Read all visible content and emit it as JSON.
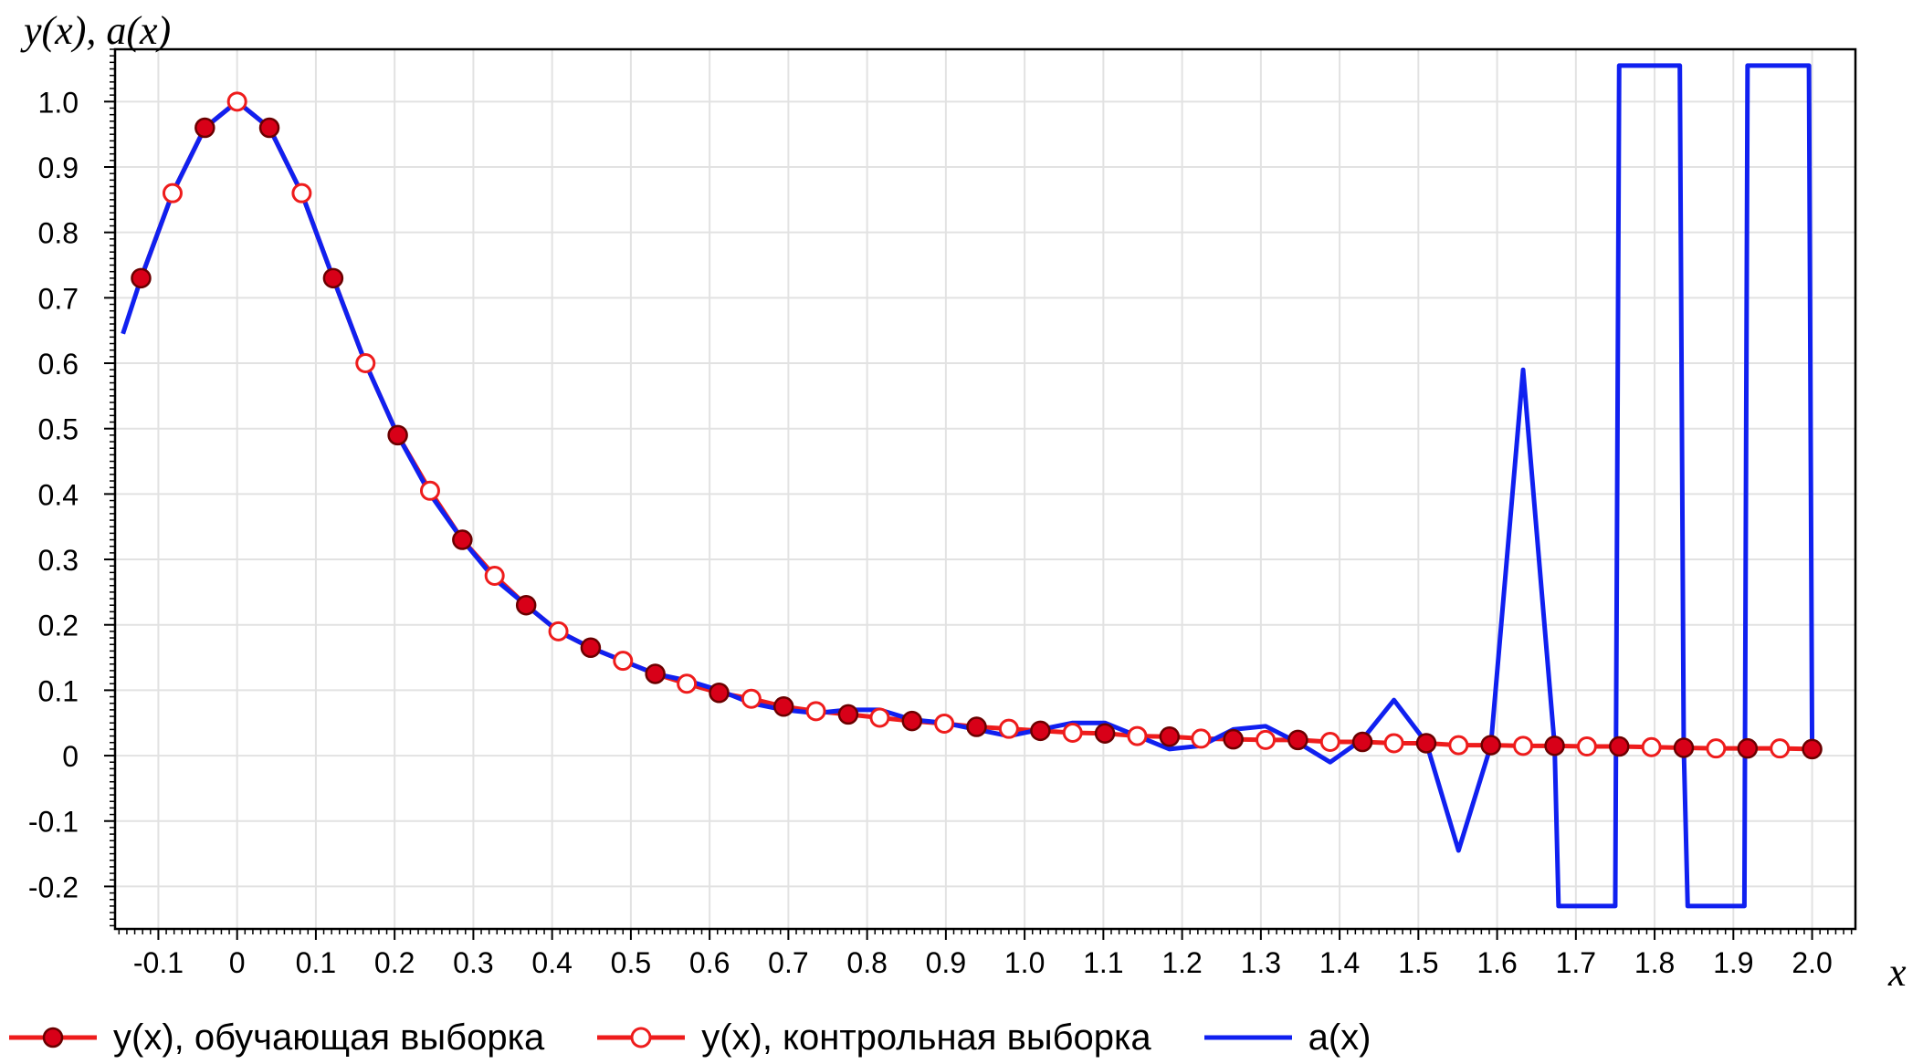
{
  "chart_data": {
    "type": "line",
    "ylabel": "y(x), a(x)",
    "xlabel": "x",
    "xlim": [
      -0.155,
      2.055
    ],
    "ylim": [
      -0.265,
      1.08
    ],
    "grid": true,
    "legend_position": "bottom",
    "x_ticks": [
      "-0.1",
      "0",
      "0.1",
      "0.2",
      "0.3",
      "0.4",
      "0.5",
      "0.6",
      "0.7",
      "0.8",
      "0.9",
      "1.0",
      "1.1",
      "1.2",
      "1.3",
      "1.4",
      "1.5",
      "1.6",
      "1.7",
      "1.8",
      "1.9",
      "2.0"
    ],
    "y_ticks": [
      "-0.2",
      "-0.1",
      "0",
      "0.1",
      "0.2",
      "0.3",
      "0.4",
      "0.5",
      "0.6",
      "0.7",
      "0.8",
      "0.9",
      "1.0"
    ],
    "colors": {
      "y": "#ee1c1c",
      "train_fill": "#d80018",
      "train_edge": "#6a0000",
      "control_fill": "#ffffff",
      "a": "#1020f0",
      "grid": "#e2e2e2"
    },
    "series": [
      {
        "name": "y(x), обучающая выборка",
        "x": [
          -0.122,
          -0.041,
          0.041,
          0.122,
          0.204,
          0.286,
          0.367,
          0.449,
          0.531,
          0.612,
          0.694,
          0.776,
          0.857,
          0.939,
          1.02,
          1.102,
          1.184,
          1.265,
          1.347,
          1.429,
          1.51,
          1.592,
          1.673,
          1.755,
          1.837,
          1.918,
          2.0
        ],
        "y": [
          0.73,
          0.96,
          0.96,
          0.73,
          0.49,
          0.33,
          0.23,
          0.165,
          0.125,
          0.096,
          0.075,
          0.063,
          0.053,
          0.044,
          0.038,
          0.034,
          0.029,
          0.025,
          0.024,
          0.021,
          0.019,
          0.016,
          0.015,
          0.014,
          0.012,
          0.011,
          0.01
        ]
      },
      {
        "name": "y(x), контрольная выборка",
        "x": [
          -0.082,
          0.0,
          0.082,
          0.163,
          0.245,
          0.327,
          0.408,
          0.49,
          0.571,
          0.653,
          0.735,
          0.816,
          0.898,
          0.98,
          1.061,
          1.143,
          1.224,
          1.306,
          1.388,
          1.469,
          1.551,
          1.633,
          1.714,
          1.796,
          1.878,
          1.959
        ],
        "y": [
          0.86,
          1.0,
          0.86,
          0.6,
          0.405,
          0.275,
          0.19,
          0.145,
          0.11,
          0.087,
          0.068,
          0.058,
          0.049,
          0.041,
          0.035,
          0.03,
          0.026,
          0.024,
          0.021,
          0.019,
          0.016,
          0.015,
          0.014,
          0.013,
          0.011,
          0.011
        ]
      },
      {
        "name": "a(x)",
        "x": [
          -0.145,
          -0.122,
          -0.082,
          -0.041,
          0.0,
          0.041,
          0.082,
          0.122,
          0.163,
          0.204,
          0.245,
          0.286,
          0.327,
          0.367,
          0.408,
          0.449,
          0.49,
          0.531,
          0.571,
          0.612,
          0.653,
          0.694,
          0.735,
          0.776,
          0.816,
          0.857,
          0.898,
          0.939,
          0.98,
          1.02,
          1.061,
          1.102,
          1.143,
          1.184,
          1.224,
          1.265,
          1.306,
          1.347,
          1.388,
          1.429,
          1.469,
          1.51,
          1.551,
          1.592,
          1.633,
          1.673,
          1.678,
          1.714,
          1.75,
          1.755,
          1.76,
          1.796,
          1.832,
          1.837,
          1.842,
          1.878,
          1.914,
          1.918,
          1.922,
          1.959,
          1.996,
          2.0
        ],
        "y": [
          0.645,
          0.73,
          0.86,
          0.96,
          1.0,
          0.96,
          0.86,
          0.73,
          0.6,
          0.49,
          0.4,
          0.33,
          0.27,
          0.23,
          0.19,
          0.165,
          0.145,
          0.125,
          0.115,
          0.1,
          0.08,
          0.07,
          0.065,
          0.07,
          0.07,
          0.055,
          0.05,
          0.04,
          0.03,
          0.04,
          0.05,
          0.05,
          0.03,
          0.01,
          0.015,
          0.04,
          0.045,
          0.02,
          -0.01,
          0.025,
          0.085,
          0.02,
          -0.145,
          0.015,
          0.59,
          0.015,
          -0.23,
          -0.23,
          -0.23,
          1.055,
          1.055,
          1.055,
          1.055,
          0.012,
          -0.23,
          -0.23,
          -0.23,
          1.055,
          1.055,
          1.055,
          1.055,
          0.01
        ]
      }
    ]
  }
}
